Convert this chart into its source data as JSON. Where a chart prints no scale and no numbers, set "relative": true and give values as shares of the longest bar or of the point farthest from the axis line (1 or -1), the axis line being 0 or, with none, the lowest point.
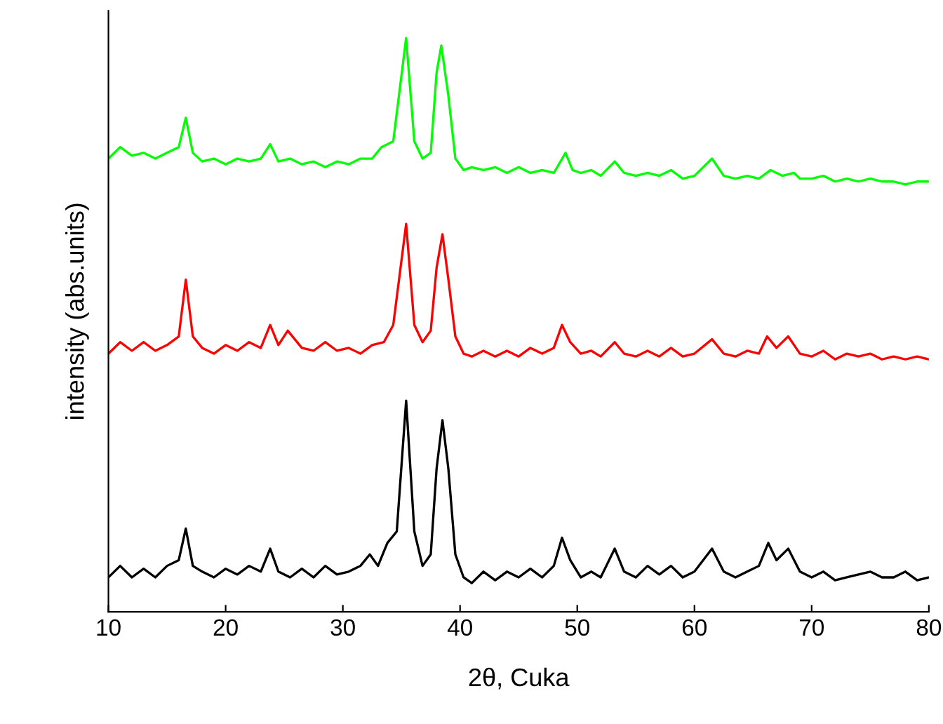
{
  "chart_data": {
    "type": "line",
    "relative": true,
    "xlabel": "2θ, Cuka",
    "ylabel": "intensity (abs.units)",
    "xlim": [
      10,
      80
    ],
    "xticks": [
      10,
      20,
      30,
      40,
      50,
      60,
      70,
      80
    ],
    "tick_labels": "x",
    "grid": false,
    "legend": false,
    "marker": "none",
    "line_style": "solid",
    "series": [
      {
        "color": "#000000",
        "x": [
          10,
          11,
          12,
          13,
          14,
          15,
          16,
          16.6,
          17.2,
          18,
          19,
          20,
          21,
          22,
          23,
          23.8,
          24.5,
          25.5,
          26.5,
          27.5,
          28.5,
          29.5,
          30.5,
          31.5,
          32.3,
          33,
          33.8,
          34.6,
          35.4,
          36.1,
          36.8,
          37.5,
          38.0,
          38.5,
          39.0,
          39.6,
          40.3,
          41,
          42,
          43,
          44,
          45,
          46,
          47,
          48,
          48.7,
          49.4,
          50.3,
          51.2,
          52,
          53.2,
          54,
          55,
          56,
          57,
          58,
          59,
          60,
          61.5,
          62.5,
          63.5,
          64.5,
          65.5,
          66.3,
          67,
          68,
          69,
          70,
          71,
          72,
          73,
          74,
          75,
          76,
          77,
          78,
          79,
          80
        ],
        "values": [
          0.06,
          0.08,
          0.06,
          0.075,
          0.06,
          0.08,
          0.09,
          0.145,
          0.08,
          0.07,
          0.06,
          0.075,
          0.065,
          0.08,
          0.07,
          0.11,
          0.07,
          0.06,
          0.075,
          0.06,
          0.08,
          0.065,
          0.07,
          0.08,
          0.1,
          0.08,
          0.12,
          0.14,
          0.368,
          0.14,
          0.08,
          0.1,
          0.25,
          0.334,
          0.25,
          0.1,
          0.06,
          0.05,
          0.07,
          0.055,
          0.07,
          0.06,
          0.075,
          0.06,
          0.08,
          0.129,
          0.09,
          0.06,
          0.07,
          0.06,
          0.11,
          0.07,
          0.06,
          0.08,
          0.065,
          0.08,
          0.06,
          0.07,
          0.11,
          0.07,
          0.06,
          0.07,
          0.08,
          0.12,
          0.09,
          0.11,
          0.07,
          0.06,
          0.07,
          0.055,
          0.06,
          0.065,
          0.07,
          0.06,
          0.06,
          0.07,
          0.055,
          0.06
        ]
      },
      {
        "color": "#ff0000",
        "x": [
          10,
          11,
          12,
          13,
          14,
          15,
          16,
          16.6,
          17.2,
          18,
          19,
          20,
          21,
          22,
          23,
          23.8,
          24.5,
          25.3,
          26.5,
          27.5,
          28.5,
          29.5,
          30.5,
          31.5,
          32.5,
          33.5,
          34.3,
          35.4,
          36.1,
          36.8,
          37.5,
          38.0,
          38.5,
          39.0,
          39.6,
          40.3,
          41,
          42,
          43,
          44,
          45,
          46,
          47,
          48,
          48.7,
          49.4,
          50.3,
          51.2,
          52,
          53.2,
          54,
          55,
          56,
          57,
          58,
          59,
          60,
          61.5,
          62.5,
          63.5,
          64.5,
          65.5,
          66.2,
          67,
          68,
          69,
          70,
          71,
          72,
          73,
          74,
          75,
          76,
          77,
          78,
          79,
          80
        ],
        "values": [
          0.45,
          0.47,
          0.455,
          0.47,
          0.455,
          0.465,
          0.48,
          0.579,
          0.48,
          0.46,
          0.45,
          0.465,
          0.455,
          0.47,
          0.46,
          0.5,
          0.465,
          0.49,
          0.46,
          0.455,
          0.47,
          0.455,
          0.46,
          0.45,
          0.465,
          0.47,
          0.5,
          0.676,
          0.5,
          0.47,
          0.49,
          0.6,
          0.658,
          0.58,
          0.48,
          0.45,
          0.445,
          0.455,
          0.445,
          0.455,
          0.445,
          0.46,
          0.45,
          0.46,
          0.5,
          0.47,
          0.45,
          0.455,
          0.445,
          0.47,
          0.45,
          0.445,
          0.455,
          0.445,
          0.46,
          0.445,
          0.45,
          0.475,
          0.45,
          0.445,
          0.455,
          0.45,
          0.48,
          0.46,
          0.48,
          0.45,
          0.445,
          0.455,
          0.44,
          0.45,
          0.445,
          0.45,
          0.44,
          0.445,
          0.44,
          0.445,
          0.44
        ]
      },
      {
        "color": "#00ff00",
        "x": [
          10,
          11,
          12,
          13,
          14,
          15,
          16,
          16.6,
          17.2,
          18,
          19,
          20,
          21,
          22,
          23,
          23.8,
          24.5,
          25.5,
          26.5,
          27.5,
          28.5,
          29.5,
          30.5,
          31.5,
          32.5,
          33.3,
          34.3,
          35.4,
          36.1,
          36.8,
          37.5,
          38.0,
          38.4,
          39.0,
          39.6,
          40.3,
          41,
          42,
          43,
          44,
          45,
          46,
          47,
          48,
          49,
          49.6,
          50.3,
          51.2,
          52,
          53.2,
          54,
          55,
          56,
          57,
          58,
          59,
          60,
          61.5,
          62.5,
          63.5,
          64.5,
          65.5,
          66.5,
          67.5,
          68.5,
          69,
          70,
          71,
          72,
          73,
          74,
          75,
          76,
          77,
          78,
          79,
          80
        ],
        "values": [
          0.79,
          0.81,
          0.795,
          0.8,
          0.79,
          0.8,
          0.81,
          0.861,
          0.8,
          0.785,
          0.79,
          0.78,
          0.79,
          0.785,
          0.79,
          0.815,
          0.785,
          0.79,
          0.78,
          0.785,
          0.775,
          0.785,
          0.78,
          0.79,
          0.79,
          0.81,
          0.82,
          1.0,
          0.82,
          0.79,
          0.8,
          0.94,
          0.987,
          0.9,
          0.79,
          0.77,
          0.775,
          0.77,
          0.775,
          0.765,
          0.775,
          0.765,
          0.77,
          0.765,
          0.8,
          0.77,
          0.765,
          0.77,
          0.76,
          0.785,
          0.765,
          0.76,
          0.765,
          0.76,
          0.77,
          0.755,
          0.76,
          0.79,
          0.76,
          0.755,
          0.76,
          0.755,
          0.77,
          0.76,
          0.765,
          0.755,
          0.755,
          0.76,
          0.75,
          0.755,
          0.75,
          0.755,
          0.75,
          0.75,
          0.745,
          0.75,
          0.75
        ]
      }
    ]
  }
}
